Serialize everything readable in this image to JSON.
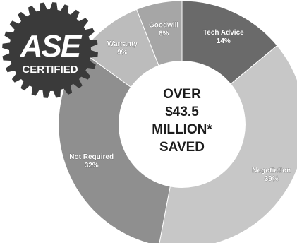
{
  "chart_data": {
    "type": "pie",
    "variant": "donut",
    "categories": [
      "Tech Advice",
      "Negotiation",
      "Not Required",
      "Warranty",
      "Goodwill"
    ],
    "values": [
      14,
      39,
      32,
      9,
      6
    ],
    "value_labels": [
      "14%",
      "39%",
      "32%",
      "9%",
      "6%"
    ],
    "colors": [
      "#6a6a6a",
      "#c7c7c7",
      "#8f8f8f",
      "#bcbcbc",
      "#a6a6a6"
    ],
    "start_angle_deg": 0,
    "direction": "clockwise",
    "center_text": [
      "OVER",
      "$43.5",
      "MILLION*",
      "SAVED"
    ]
  },
  "badge": {
    "logo_text": "ASE",
    "caption": "CERTIFIED",
    "colors": {
      "gear": "#3a3a3a",
      "text": "#ffffff"
    }
  }
}
